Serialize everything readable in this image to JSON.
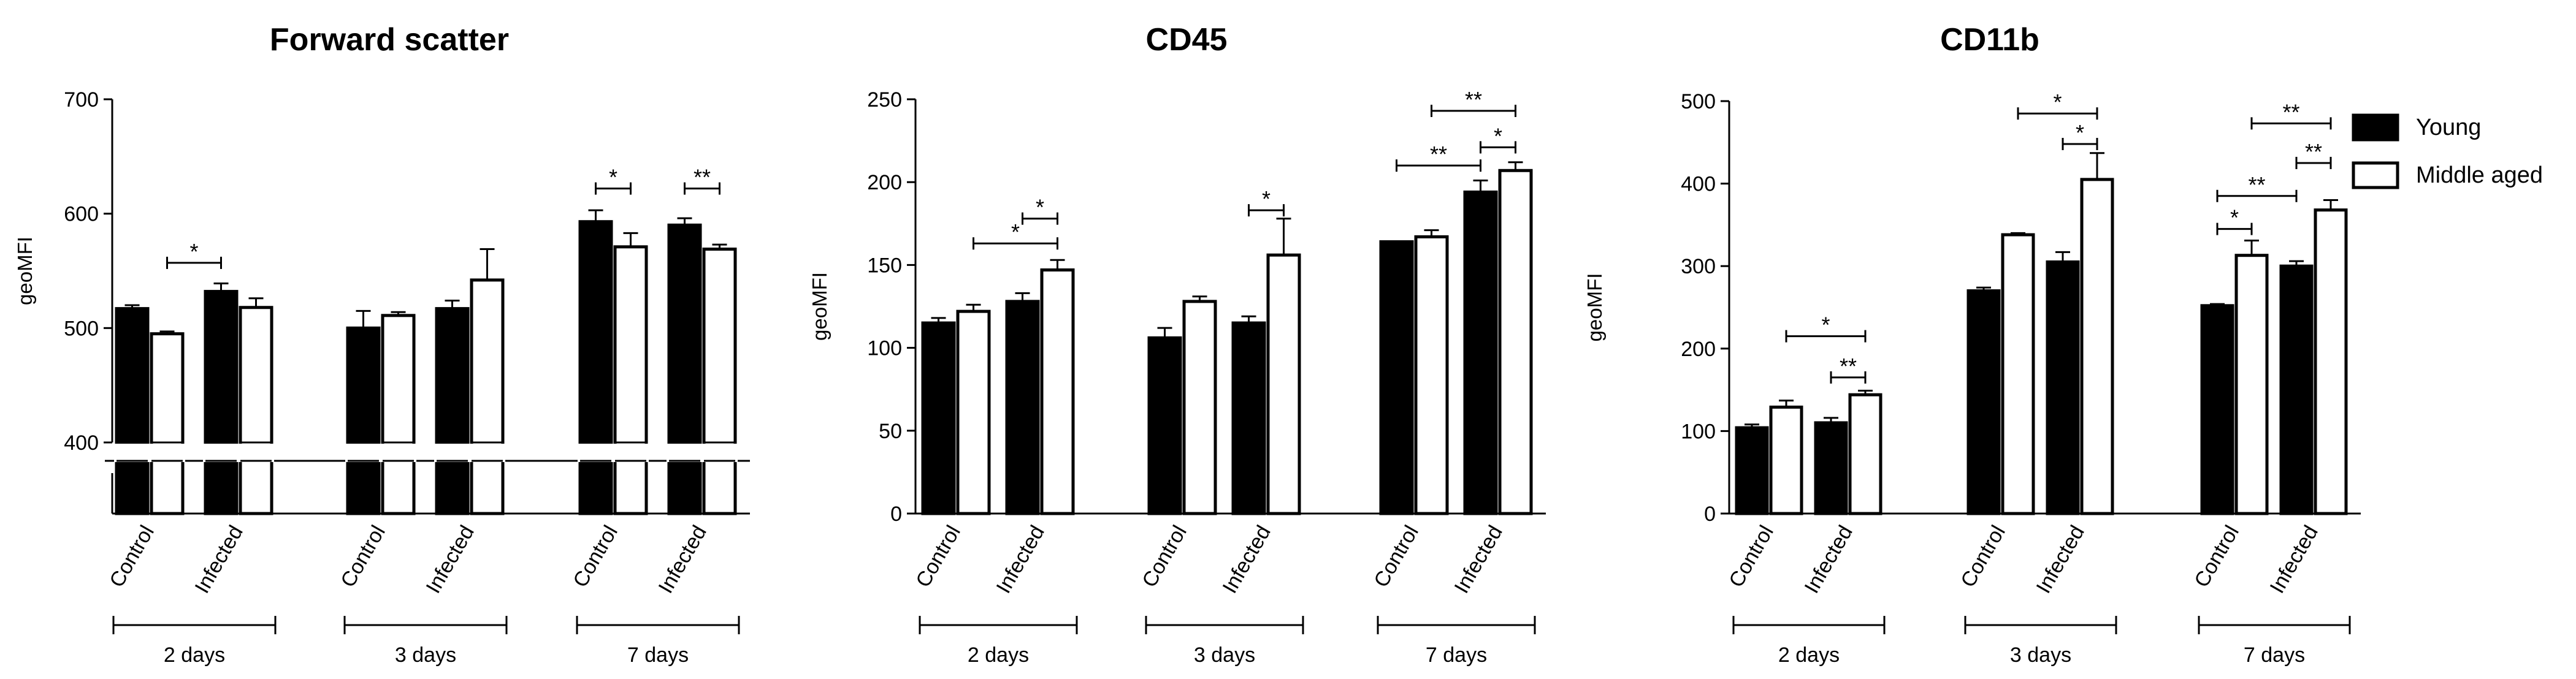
{
  "legend": {
    "position": "top-right",
    "items": [
      {
        "name": "Young",
        "fill": "#000000"
      },
      {
        "name": "Middle aged",
        "fill": "#ffffff"
      }
    ]
  },
  "chart_data": [
    {
      "type": "bar",
      "title": "Forward scatter",
      "ylabel": "geoMFI",
      "ylim": [
        400,
        700
      ],
      "yticks": [
        400,
        500,
        600,
        700
      ],
      "axis_break": true,
      "series_names": [
        "Young",
        "Middle aged"
      ],
      "groups": [
        {
          "label": "2 days",
          "categories": [
            {
              "label": "Control",
              "young": 517,
              "young_err": 3,
              "middle_aged": 495,
              "middle_aged_err": 2
            },
            {
              "label": "Infected",
              "young": 532,
              "young_err": 7,
              "middle_aged": 518,
              "middle_aged_err": 8
            }
          ]
        },
        {
          "label": "3 days",
          "categories": [
            {
              "label": "Control",
              "young": 500,
              "young_err": 15,
              "middle_aged": 511,
              "middle_aged_err": 3
            },
            {
              "label": "Infected",
              "young": 517,
              "young_err": 7,
              "middle_aged": 542,
              "middle_aged_err": 27
            }
          ]
        },
        {
          "label": "7 days",
          "categories": [
            {
              "label": "Control",
              "young": 593,
              "young_err": 10,
              "middle_aged": 571,
              "middle_aged_err": 12
            },
            {
              "label": "Infected",
              "young": 590,
              "young_err": 6,
              "middle_aged": 569,
              "middle_aged_err": 4
            }
          ]
        }
      ],
      "significance": [
        {
          "group": 0,
          "from": [
            0,
            1
          ],
          "to": [
            1,
            0
          ],
          "label": "*",
          "y": 557
        },
        {
          "group": 2,
          "from": [
            0,
            0
          ],
          "to": [
            0,
            1
          ],
          "label": "*",
          "y": 622
        },
        {
          "group": 2,
          "from": [
            1,
            0
          ],
          "to": [
            1,
            1
          ],
          "label": "**",
          "y": 622
        }
      ]
    },
    {
      "type": "bar",
      "title": "CD45",
      "ylabel": "geoMFI",
      "ylim": [
        0,
        250
      ],
      "yticks": [
        0,
        50,
        100,
        150,
        200,
        250
      ],
      "axis_break": false,
      "series_names": [
        "Young",
        "Middle aged"
      ],
      "groups": [
        {
          "label": "2 days",
          "categories": [
            {
              "label": "Control",
              "young": 115,
              "young_err": 3,
              "middle_aged": 122,
              "middle_aged_err": 4
            },
            {
              "label": "Infected",
              "young": 128,
              "young_err": 5,
              "middle_aged": 147,
              "middle_aged_err": 6
            }
          ]
        },
        {
          "label": "3 days",
          "categories": [
            {
              "label": "Control",
              "young": 106,
              "young_err": 6,
              "middle_aged": 128,
              "middle_aged_err": 3
            },
            {
              "label": "Infected",
              "young": 115,
              "young_err": 4,
              "middle_aged": 156,
              "middle_aged_err": 22
            }
          ]
        },
        {
          "label": "7 days",
          "categories": [
            {
              "label": "Control",
              "young": 164,
              "young_err": 0,
              "middle_aged": 167,
              "middle_aged_err": 4
            },
            {
              "label": "Infected",
              "young": 194,
              "young_err": 7,
              "middle_aged": 207,
              "middle_aged_err": 5
            }
          ]
        }
      ],
      "significance": [
        {
          "group": 0,
          "from": [
            1,
            0
          ],
          "to": [
            1,
            1
          ],
          "label": "*",
          "y": 178
        },
        {
          "group": 0,
          "from": [
            0,
            1
          ],
          "to": [
            1,
            1
          ],
          "label": "*",
          "y": 163
        },
        {
          "group": 1,
          "from": [
            1,
            0
          ],
          "to": [
            1,
            1
          ],
          "label": "*",
          "y": 183
        },
        {
          "group": 2,
          "from": [
            0,
            0
          ],
          "to": [
            1,
            0
          ],
          "label": "**",
          "y": 210
        },
        {
          "group": 2,
          "from": [
            1,
            0
          ],
          "to": [
            1,
            1
          ],
          "label": "*",
          "y": 221
        },
        {
          "group": 2,
          "from": [
            0,
            1
          ],
          "to": [
            1,
            1
          ],
          "label": "**",
          "y": 243
        }
      ]
    },
    {
      "type": "bar",
      "title": "CD11b",
      "ylabel": "geoMFI",
      "ylim": [
        0,
        500
      ],
      "yticks": [
        0,
        100,
        200,
        300,
        400,
        500
      ],
      "axis_break": false,
      "series_names": [
        "Young",
        "Middle aged"
      ],
      "groups": [
        {
          "label": "2 days",
          "categories": [
            {
              "label": "Control",
              "young": 104,
              "young_err": 4,
              "middle_aged": 129,
              "middle_aged_err": 8
            },
            {
              "label": "Infected",
              "young": 110,
              "young_err": 6,
              "middle_aged": 144,
              "middle_aged_err": 5
            }
          ]
        },
        {
          "label": "3 days",
          "categories": [
            {
              "label": "Control",
              "young": 270,
              "young_err": 4,
              "middle_aged": 338,
              "middle_aged_err": 2
            },
            {
              "label": "Infected",
              "young": 305,
              "young_err": 12,
              "middle_aged": 405,
              "middle_aged_err": 32
            }
          ]
        },
        {
          "label": "7 days",
          "categories": [
            {
              "label": "Control",
              "young": 252,
              "young_err": 2,
              "middle_aged": 313,
              "middle_aged_err": 18
            },
            {
              "label": "Infected",
              "young": 300,
              "young_err": 6,
              "middle_aged": 368,
              "middle_aged_err": 12
            }
          ]
        }
      ],
      "significance": [
        {
          "group": 0,
          "from": [
            0,
            1
          ],
          "to": [
            1,
            1
          ],
          "label": "*",
          "y": 215
        },
        {
          "group": 0,
          "from": [
            1,
            0
          ],
          "to": [
            1,
            1
          ],
          "label": "**",
          "y": 165
        },
        {
          "group": 1,
          "from": [
            1,
            0
          ],
          "to": [
            1,
            1
          ],
          "label": "*",
          "y": 448
        },
        {
          "group": 1,
          "from": [
            0,
            1
          ],
          "to": [
            1,
            1
          ],
          "label": "*",
          "y": 485
        },
        {
          "group": 2,
          "from": [
            0,
            0
          ],
          "to": [
            0,
            1
          ],
          "label": "*",
          "y": 345
        },
        {
          "group": 2,
          "from": [
            0,
            0
          ],
          "to": [
            1,
            0
          ],
          "label": "**",
          "y": 385
        },
        {
          "group": 2,
          "from": [
            1,
            0
          ],
          "to": [
            1,
            1
          ],
          "label": "**",
          "y": 425
        },
        {
          "group": 2,
          "from": [
            0,
            1
          ],
          "to": [
            1,
            1
          ],
          "label": "**",
          "y": 473
        }
      ]
    }
  ]
}
